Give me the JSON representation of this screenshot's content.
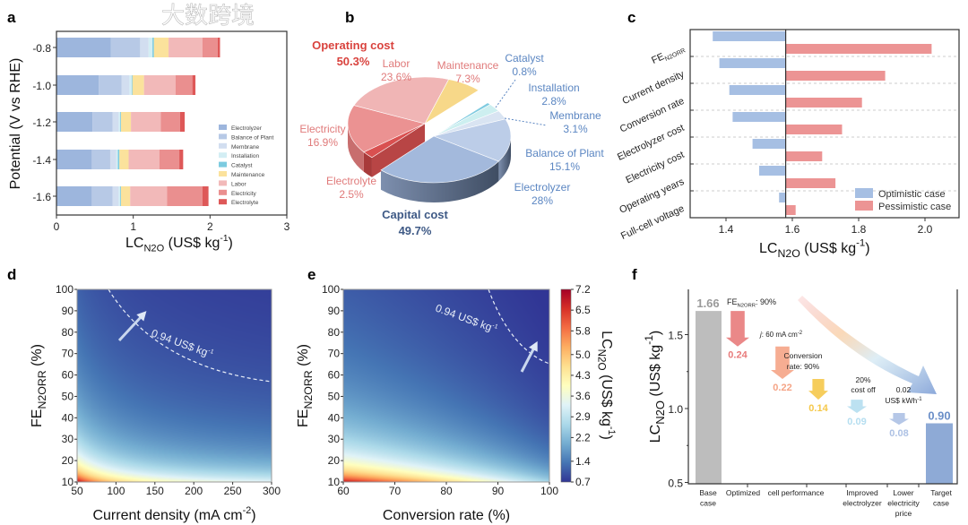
{
  "panel_labels": [
    "a",
    "b",
    "c",
    "d",
    "e",
    "f"
  ],
  "watermark": "大数跨境",
  "chart_data": [
    {
      "panel": "a",
      "type": "bar",
      "orientation": "horizontal-stacked",
      "categories": [
        "-0.8",
        "-1.0",
        "-1.2",
        "-1.4",
        "-1.6"
      ],
      "ylabel": "Potential (V vs RHE)",
      "xlabel": {
        "main": "LC",
        "sub": "N2O",
        "rest": " (US$ kg",
        "sup": "-1",
        "end": ")"
      },
      "xlim": [
        0,
        3
      ],
      "xticks": [
        "0",
        "1",
        "2",
        "3"
      ],
      "legend": "bottom-right",
      "series": [
        {
          "name": "Electrolyzer",
          "color": "#9db6dd",
          "values": [
            0.71,
            0.55,
            0.47,
            0.46,
            0.46
          ]
        },
        {
          "name": "Balance of Plant",
          "color": "#b7c9e6",
          "values": [
            0.38,
            0.3,
            0.26,
            0.24,
            0.27
          ]
        },
        {
          "name": "Membrane",
          "color": "#d2def0",
          "values": [
            0.11,
            0.1,
            0.08,
            0.08,
            0.08
          ]
        },
        {
          "name": "Installation",
          "color": "#d3eef4",
          "values": [
            0.05,
            0.03,
            0.02,
            0.02,
            0.02
          ]
        },
        {
          "name": "Catalyst",
          "color": "#7ccbe0",
          "values": [
            0.02,
            0.01,
            0.01,
            0.02,
            0.01
          ]
        },
        {
          "name": "Maintenance",
          "color": "#fbe29c",
          "values": [
            0.19,
            0.15,
            0.13,
            0.12,
            0.12
          ]
        },
        {
          "name": "Labor",
          "color": "#f2b9b9",
          "values": [
            0.44,
            0.41,
            0.39,
            0.4,
            0.48
          ]
        },
        {
          "name": "Electricity",
          "color": "#ea8f8f",
          "values": [
            0.2,
            0.22,
            0.25,
            0.26,
            0.46
          ]
        },
        {
          "name": "Electrolyte",
          "color": "#de5858",
          "values": [
            0.03,
            0.04,
            0.06,
            0.05,
            0.08
          ]
        }
      ]
    },
    {
      "panel": "b",
      "type": "pie",
      "groups": [
        {
          "name": "Operating cost",
          "value": "50.3%",
          "color": "#d9433e"
        },
        {
          "name": "Capital cost",
          "value": "49.7%",
          "color": "#3f5a86"
        }
      ],
      "slices": [
        {
          "name": "Maintenance",
          "label": "7.3%",
          "value": 7.3,
          "group": "Operating cost",
          "color": "#f7d889",
          "side": "#c9aa5c",
          "text": "#e07a7a"
        },
        {
          "name": "Catalyst",
          "label": "0.8%",
          "value": 0.8,
          "group": "Capital cost",
          "color": "#7fcbe0",
          "side": "#4f6a80",
          "text": "#5b86c2"
        },
        {
          "name": "Installation",
          "label": "2.8%",
          "value": 2.8,
          "group": "Capital cost",
          "color": "#cdeff0",
          "side": "#56657c",
          "text": "#5b86c2"
        },
        {
          "name": "Membrane",
          "label": "3.1%",
          "value": 3.1,
          "group": "Capital cost",
          "color": "#d9e4f2",
          "side": "#56657c",
          "text": "#5b86c2"
        },
        {
          "name": "Balance of Plant",
          "label": "15.1%",
          "value": 15.1,
          "group": "Capital cost",
          "color": "#bccde8",
          "side": "#4c5a70",
          "text": "#5b86c2"
        },
        {
          "name": "Electrolyzer",
          "label": "28%",
          "value": 28,
          "group": "Capital cost",
          "color": "#a3b9dc",
          "side": "#5d6f8c",
          "text": "#5b86c2"
        },
        {
          "name": "Electrolyte",
          "label": "2.5%",
          "value": 2.5,
          "group": "Operating cost",
          "color": "#d95050",
          "side": "#a83a3a",
          "text": "#e07a7a"
        },
        {
          "name": "Electricity",
          "label": "16.9%",
          "value": 16.9,
          "group": "Operating cost",
          "color": "#eb9292",
          "side": "#c86e6e",
          "text": "#e07a7a"
        },
        {
          "name": "Labor",
          "label": "23.6%",
          "value": 23.6,
          "group": "Operating cost",
          "color": "#f0b5b5",
          "side": "#cf8f8f",
          "text": "#e07a7a"
        }
      ]
    },
    {
      "panel": "c",
      "type": "bar",
      "orientation": "tornado",
      "categories": [
        "FE",
        "Current density",
        "Conversion rate",
        "Electrolyzer cost",
        "Electricity cost",
        "Operating years",
        "Full-cell voltage"
      ],
      "first_category_sub": "N2ORR",
      "baseline": 1.58,
      "xlim": [
        1.29,
        2.1
      ],
      "xticks": [
        "1.4",
        "1.6",
        "1.8",
        "2.0"
      ],
      "xlabel": {
        "main": "LC",
        "sub": "N2O",
        "rest": " (US$ kg",
        "sup": "-1",
        "end": ")"
      },
      "legend": "bottom-right",
      "series": [
        {
          "name": "Optimistic case",
          "color": "#a6bfe3",
          "values": [
            1.36,
            1.38,
            1.41,
            1.42,
            1.48,
            1.5,
            1.56
          ]
        },
        {
          "name": "Pessimistic case",
          "color": "#ec9494",
          "values": [
            2.02,
            1.88,
            1.81,
            1.75,
            1.69,
            1.73,
            1.61
          ]
        }
      ]
    },
    {
      "panel": "d",
      "type": "heatmap",
      "xlim": [
        50,
        300
      ],
      "ylim": [
        10,
        100
      ],
      "xticks": [
        "50",
        "100",
        "150",
        "200",
        "250",
        "300"
      ],
      "yticks": [
        "10",
        "20",
        "30",
        "40",
        "50",
        "60",
        "70",
        "80",
        "90",
        "100"
      ],
      "xlabel": {
        "main": "Current density (mA cm",
        "sup": "-2",
        "end": ")"
      },
      "ylabel": {
        "main": "FE",
        "sub": "N2ORR",
        "end": " (%)"
      },
      "contour": {
        "value": 0.94,
        "label": "0.94 US$ kg",
        "sup": "-1"
      }
    },
    {
      "panel": "e",
      "type": "heatmap",
      "xlim": [
        60,
        100
      ],
      "ylim": [
        10,
        100
      ],
      "xticks": [
        "60",
        "70",
        "80",
        "90",
        "100"
      ],
      "yticks": [
        "10",
        "20",
        "30",
        "40",
        "50",
        "60",
        "70",
        "80",
        "90",
        "100"
      ],
      "xlabel": {
        "main": "Conversion rate (%)"
      },
      "ylabel": {
        "main": "FE",
        "sub": "N2ORR",
        "end": " (%)"
      },
      "contour": {
        "value": 0.94,
        "label": "0.94 US$ kg",
        "sup": "-1"
      },
      "colorbar": {
        "ticks": [
          "7.2",
          "6.5",
          "5.8",
          "5.0",
          "4.3",
          "3.6",
          "2.9",
          "2.2",
          "1.4",
          "0.7"
        ],
        "range": [
          0.7,
          7.2
        ],
        "label": {
          "main": "LC",
          "sub": "N2O",
          "rest": " (US$ kg",
          "sup": "-1",
          "end": ")"
        },
        "colors": [
          "#313695",
          "#4575b4",
          "#74add1",
          "#abd9e9",
          "#e0f3f8",
          "#ffffbf",
          "#fee090",
          "#fdae61",
          "#f46d43",
          "#d73027",
          "#a50026"
        ]
      }
    },
    {
      "panel": "f",
      "type": "bar",
      "orientation": "waterfall",
      "ylim": [
        0.5,
        1.75
      ],
      "yticks": [
        "0.5",
        "1.0",
        "1.5"
      ],
      "ylabel": {
        "main": "LC",
        "sub": "N2O",
        "rest": " (US$ kg",
        "sup": "-1",
        "end": ")"
      },
      "base": {
        "value": 1.66,
        "label": "1.66",
        "color": "#bdbdbd",
        "text": "#9a9a9a"
      },
      "target": {
        "value": 0.9,
        "label": "0.90",
        "color": "#8eaad6",
        "text": "#6b8fc8"
      },
      "steps": [
        {
          "value": 0.24,
          "label": "0.24",
          "color": "#e87b7b"
        },
        {
          "value": 0.22,
          "label": "0.22",
          "color": "#f5a486"
        },
        {
          "value": 0.14,
          "label": "0.14",
          "color": "#f5c84a"
        },
        {
          "value": 0.09,
          "label": "0.09",
          "color": "#b5def0"
        },
        {
          "value": 0.08,
          "label": "0.08",
          "color": "#adc1e4"
        }
      ],
      "annotations": {
        "fe": {
          "main": "FE",
          "sub": "N2ORR",
          "end": ": 90%"
        },
        "j": {
          "main": "j",
          "end": ": 60 mA  cm",
          "sup": "-2"
        },
        "conv": [
          "Conversion",
          "rate: 90%"
        ],
        "cost": [
          "20%",
          "cost off"
        ],
        "elec": {
          "line1": "0.02",
          "line2": "US$ kWh",
          "sup": "-1"
        }
      },
      "categories": [
        [
          "Base",
          "case"
        ],
        [
          "Optimized"
        ],
        [
          "cell performance"
        ],
        [
          "Improved",
          "electrolyzer"
        ],
        [
          "Lower",
          "electricity",
          "price"
        ],
        [
          "Target",
          "case"
        ]
      ]
    }
  ]
}
